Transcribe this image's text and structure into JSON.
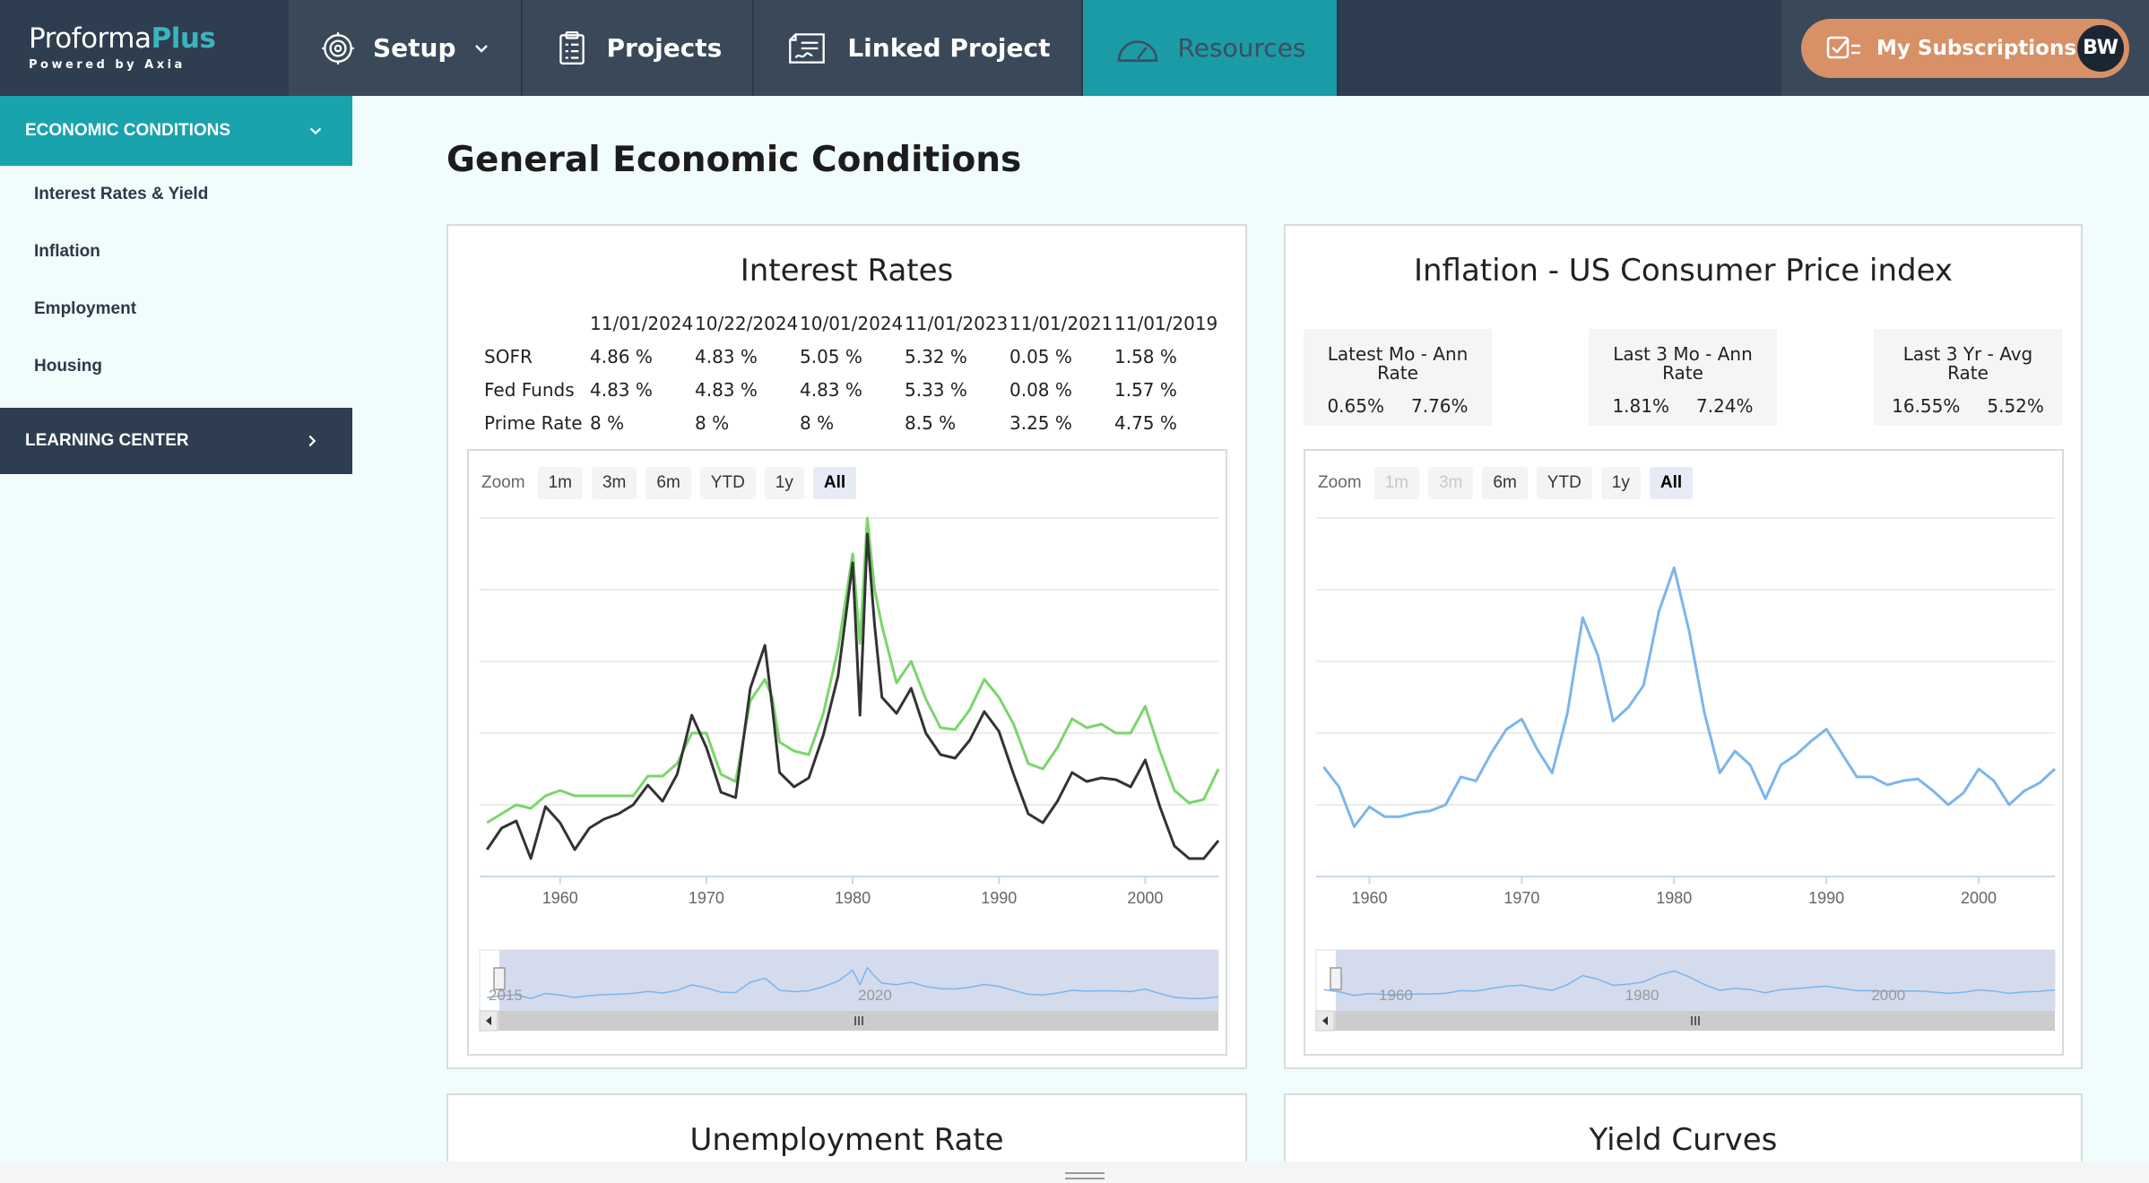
{
  "nav": {
    "logo_main": "Proforma",
    "logo_accent": "Plus",
    "logo_sub": "Powered by Axia",
    "items": [
      {
        "label": "Setup",
        "icon": "setup-gear-icon"
      },
      {
        "label": "Projects",
        "icon": "clipboard-icon"
      },
      {
        "label": "Linked Project",
        "icon": "contract-icon"
      },
      {
        "label": "Resources",
        "icon": "gauge-icon",
        "active": true
      }
    ],
    "subscriptions_label": "My Subscriptions",
    "avatar_initials": "BW"
  },
  "sidebar": {
    "section_label": "ECONOMIC CONDITIONS",
    "items": [
      "Interest Rates & Yield",
      "Inflation",
      "Employment",
      "Housing"
    ],
    "learning_label": "LEARNING CENTER"
  },
  "page_title": "General Economic Conditions",
  "interest": {
    "title": "Interest Rates",
    "dates": [
      "11/01/2024",
      "10/22/2024",
      "10/01/2024",
      "11/01/2023",
      "11/01/2021",
      "11/01/2019"
    ],
    "rows": [
      {
        "name": "SOFR",
        "values": [
          "4.86 %",
          "4.83 %",
          "5.05 %",
          "5.32 %",
          "0.05 %",
          "1.58 %"
        ]
      },
      {
        "name": "Fed Funds",
        "values": [
          "4.83 %",
          "4.83 %",
          "4.83 %",
          "5.33 %",
          "0.08 %",
          "1.57 %"
        ]
      },
      {
        "name": "Prime Rate",
        "values": [
          "8 %",
          "8 %",
          "8 %",
          "8.5 %",
          "3.25 %",
          "4.75 %"
        ]
      }
    ],
    "zoom": {
      "label": "Zoom",
      "buttons": [
        "1m",
        "3m",
        "6m",
        "YTD",
        "1y",
        "All"
      ],
      "selected": "All"
    },
    "navigator_labels": [
      "2015",
      "2020"
    ]
  },
  "inflation": {
    "title": "Inflation - US Consumer Price index",
    "stats": [
      {
        "label": "Latest Mo - Ann Rate",
        "a": "0.65%",
        "b": "7.76%"
      },
      {
        "label": "Last 3 Mo - Ann Rate",
        "a": "1.81%",
        "b": "7.24%"
      },
      {
        "label": "Last 3 Yr - Avg Rate",
        "a": "16.55%",
        "b": "5.52%"
      }
    ],
    "zoom": {
      "label": "Zoom",
      "buttons": [
        "1m",
        "3m",
        "6m",
        "YTD",
        "1y",
        "All"
      ],
      "selected": "All",
      "disabled": [
        "1m",
        "3m"
      ]
    },
    "navigator_labels": [
      "1960",
      "1980",
      "2000"
    ]
  },
  "bottom_cards": [
    "Unemployment Rate",
    "Yield Curves"
  ],
  "chart_data": [
    {
      "type": "line",
      "title": "Interest Rates",
      "xlim": [
        1954.5,
        2005
      ],
      "ylim": [
        0,
        20
      ],
      "xticks": [
        1960,
        1970,
        1980,
        1990,
        2000
      ],
      "series": [
        {
          "color": "#7ad66a",
          "x": [
            1955,
            1956,
            1957,
            1958,
            1959,
            1960,
            1961,
            1962,
            1963,
            1964,
            1965,
            1966,
            1967,
            1968,
            1969,
            1970,
            1971,
            1972,
            1973,
            1974,
            1974.5,
            1975,
            1976,
            1977,
            1978,
            1979,
            1980,
            1980.5,
            1981,
            1981.5,
            1982,
            1983,
            1984,
            1985,
            1986,
            1987,
            1988,
            1989,
            1990,
            1991,
            1992,
            1993,
            1994,
            1995,
            1996,
            1997,
            1998,
            1999,
            2000,
            2001,
            2002,
            2003,
            2004,
            2005
          ],
          "y": [
            3.0,
            3.5,
            4.0,
            3.8,
            4.5,
            4.8,
            4.5,
            4.5,
            4.5,
            4.5,
            4.5,
            5.6,
            5.6,
            6.3,
            8.0,
            8.0,
            5.7,
            5.3,
            9.8,
            11.0,
            10.0,
            7.5,
            7.0,
            6.8,
            9.1,
            12.7,
            18.0,
            13.0,
            20.0,
            16.0,
            14.0,
            10.8,
            12.0,
            9.9,
            8.3,
            8.2,
            9.3,
            11.0,
            10.0,
            8.5,
            6.3,
            6.0,
            7.2,
            8.8,
            8.3,
            8.5,
            8.0,
            8.0,
            9.5,
            7.0,
            4.8,
            4.1,
            4.3,
            6.0
          ]
        },
        {
          "color": "#333333",
          "x": [
            1955,
            1956,
            1957,
            1958,
            1959,
            1960,
            1961,
            1962,
            1963,
            1964,
            1965,
            1966,
            1967,
            1968,
            1969,
            1970,
            1971,
            1972,
            1973,
            1974,
            1974.5,
            1975,
            1976,
            1977,
            1978,
            1979,
            1980,
            1980.5,
            1981,
            1981.5,
            1982,
            1983,
            1984,
            1985,
            1986,
            1987,
            1988,
            1989,
            1990,
            1991,
            1992,
            1993,
            1994,
            1995,
            1996,
            1997,
            1998,
            1999,
            2000,
            2001,
            2002,
            2003,
            2004,
            2005
          ],
          "y": [
            1.5,
            2.7,
            3.1,
            1.0,
            3.9,
            3.0,
            1.5,
            2.7,
            3.2,
            3.5,
            4.0,
            5.1,
            4.2,
            5.7,
            9.0,
            7.2,
            4.7,
            4.4,
            10.5,
            12.9,
            9.5,
            5.8,
            5.0,
            5.5,
            7.9,
            11.2,
            17.5,
            9.0,
            19.1,
            14.0,
            10.0,
            9.1,
            10.5,
            8.0,
            6.8,
            6.6,
            7.6,
            9.2,
            8.1,
            5.7,
            3.5,
            3.0,
            4.2,
            5.8,
            5.3,
            5.5,
            5.4,
            5.0,
            6.5,
            3.9,
            1.7,
            1.0,
            1.0,
            2.0
          ]
        }
      ]
    },
    {
      "type": "line",
      "title": "Inflation - US Consumer Price index",
      "xlim": [
        1956.5,
        2005
      ],
      "ylim": [
        -2,
        16
      ],
      "xticks": [
        1960,
        1970,
        1980,
        1990,
        2000
      ],
      "series": [
        {
          "color": "#7cb5ec",
          "x": [
            1957,
            1958,
            1959,
            1960,
            1961,
            1962,
            1963,
            1964,
            1965,
            1966,
            1967,
            1968,
            1969,
            1970,
            1971,
            1972,
            1973,
            1974,
            1975,
            1976,
            1977,
            1978,
            1979,
            1980,
            1981,
            1982,
            1983,
            1984,
            1985,
            1986,
            1987,
            1988,
            1989,
            1990,
            1991,
            1992,
            1993,
            1994,
            1995,
            1996,
            1997,
            1998,
            1999,
            2000,
            2001,
            2002,
            2003,
            2004,
            2005
          ],
          "y": [
            3.5,
            2.5,
            0.5,
            1.5,
            1.0,
            1.0,
            1.2,
            1.3,
            1.6,
            3.0,
            2.8,
            4.2,
            5.4,
            5.9,
            4.4,
            3.2,
            6.2,
            11.0,
            9.1,
            5.8,
            6.5,
            7.6,
            11.3,
            13.5,
            10.3,
            6.2,
            3.2,
            4.3,
            3.6,
            1.9,
            3.6,
            4.1,
            4.8,
            5.4,
            4.2,
            3.0,
            3.0,
            2.6,
            2.8,
            2.9,
            2.3,
            1.6,
            2.2,
            3.4,
            2.8,
            1.6,
            2.3,
            2.7,
            3.4
          ]
        }
      ]
    }
  ]
}
